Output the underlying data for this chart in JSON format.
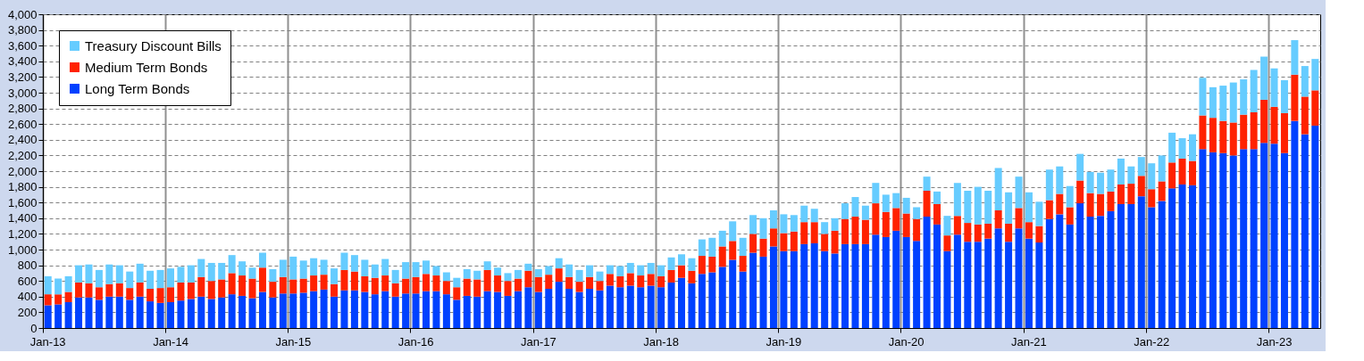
{
  "chart_data": {
    "type": "bar",
    "stacked": true,
    "categories": [
      "Jan-13",
      null,
      null,
      null,
      null,
      null,
      null,
      null,
      null,
      null,
      null,
      null,
      "Jan-14",
      null,
      null,
      null,
      null,
      null,
      null,
      null,
      null,
      null,
      null,
      null,
      "Jan-15",
      null,
      null,
      null,
      null,
      null,
      null,
      null,
      null,
      null,
      null,
      null,
      "Jan-16",
      null,
      null,
      null,
      null,
      null,
      null,
      null,
      null,
      null,
      null,
      null,
      "Jan-17",
      null,
      null,
      null,
      null,
      null,
      null,
      null,
      null,
      null,
      null,
      null,
      "Jan-18",
      null,
      null,
      null,
      null,
      null,
      null,
      null,
      null,
      null,
      null,
      null,
      "Jan-19",
      null,
      null,
      null,
      null,
      null,
      null,
      null,
      null,
      null,
      null,
      null,
      "Jan-20",
      null,
      null,
      null,
      null,
      null,
      null,
      null,
      null,
      null,
      null,
      null,
      "Jan-21",
      null,
      null,
      null,
      null,
      null,
      null,
      null,
      null,
      null,
      null,
      null,
      "Jan-22",
      null,
      null,
      null,
      null,
      null,
      null,
      null,
      null,
      null,
      null,
      null,
      "Jan-23",
      null,
      null,
      null,
      null
    ],
    "series": [
      {
        "name": "Long Term Bonds",
        "color": "#0041ff",
        "values": [
          290,
          300,
          330,
          390,
          390,
          360,
          400,
          400,
          360,
          400,
          340,
          320,
          330,
          350,
          370,
          400,
          370,
          390,
          430,
          410,
          380,
          460,
          390,
          440,
          440,
          450,
          470,
          490,
          400,
          480,
          480,
          460,
          430,
          470,
          400,
          440,
          440,
          470,
          470,
          430,
          360,
          410,
          400,
          470,
          460,
          410,
          470,
          520,
          460,
          500,
          590,
          500,
          460,
          500,
          480,
          540,
          520,
          540,
          520,
          540,
          520,
          580,
          640,
          570,
          690,
          710,
          780,
          870,
          720,
          960,
          910,
          1040,
          980,
          980,
          1070,
          1080,
          980,
          950,
          1070,
          1070,
          1070,
          1190,
          1160,
          1240,
          1160,
          1110,
          1420,
          1320,
          980,
          1190,
          1100,
          1100,
          1140,
          1270,
          1100,
          1270,
          1140,
          1090,
          1390,
          1450,
          1320,
          1590,
          1420,
          1430,
          1490,
          1580,
          1580,
          1680,
          1540,
          1620,
          1780,
          1830,
          1820,
          2280,
          2240,
          2230,
          2200,
          2280,
          2280,
          2360,
          2350,
          2230,
          2640,
          2470,
          2580
        ]
      },
      {
        "name": "Medium Term Bonds",
        "color": "#ff2200",
        "values": [
          140,
          130,
          130,
          190,
          180,
          160,
          160,
          170,
          150,
          180,
          160,
          190,
          190,
          230,
          210,
          250,
          230,
          230,
          270,
          260,
          250,
          310,
          200,
          210,
          180,
          180,
          200,
          190,
          160,
          260,
          240,
          200,
          210,
          200,
          170,
          190,
          210,
          220,
          200,
          170,
          160,
          220,
          220,
          270,
          210,
          190,
          160,
          210,
          190,
          180,
          170,
          150,
          130,
          150,
          120,
          150,
          140,
          160,
          150,
          150,
          140,
          160,
          160,
          160,
          230,
          200,
          260,
          240,
          200,
          240,
          230,
          230,
          230,
          250,
          280,
          270,
          220,
          290,
          320,
          350,
          310,
          400,
          320,
          290,
          300,
          280,
          330,
          260,
          200,
          240,
          240,
          220,
          190,
          230,
          230,
          260,
          210,
          210,
          240,
          260,
          220,
          290,
          300,
          280,
          250,
          250,
          260,
          260,
          230,
          250,
          330,
          330,
          310,
          430,
          440,
          410,
          420,
          440,
          470,
          550,
          470,
          510,
          590,
          480,
          450
        ]
      },
      {
        "name": "Treasury Discount Bills",
        "color": "#66ccff",
        "values": [
          230,
          200,
          200,
          220,
          240,
          220,
          250,
          230,
          210,
          240,
          230,
          230,
          240,
          200,
          220,
          230,
          230,
          210,
          230,
          180,
          140,
          190,
          160,
          220,
          290,
          230,
          220,
          190,
          200,
          220,
          210,
          210,
          170,
          210,
          170,
          210,
          190,
          170,
          120,
          110,
          120,
          120,
          110,
          110,
          100,
          100,
          110,
          90,
          100,
          110,
          130,
          160,
          150,
          150,
          120,
          110,
          130,
          130,
          130,
          140,
          140,
          160,
          140,
          160,
          210,
          240,
          200,
          250,
          230,
          240,
          260,
          230,
          240,
          210,
          210,
          170,
          150,
          160,
          200,
          250,
          180,
          260,
          220,
          190,
          200,
          150,
          180,
          160,
          250,
          420,
          410,
          480,
          420,
          540,
          400,
          400,
          380,
          310,
          390,
          350,
          270,
          340,
          270,
          270,
          280,
          330,
          220,
          240,
          330,
          330,
          380,
          260,
          340,
          480,
          390,
          450,
          510,
          450,
          540,
          550,
          490,
          420,
          440,
          390,
          400
        ]
      }
    ],
    "ylim": [
      0,
      4000
    ],
    "yticks": [
      0,
      200,
      400,
      600,
      800,
      {
        "value": 1000,
        "label": "1,000"
      },
      {
        "value": 1200,
        "label": "1,200"
      },
      {
        "value": 1400,
        "label": "1,400"
      },
      {
        "value": 1600,
        "label": "1,600"
      },
      {
        "value": 1800,
        "label": "1,800"
      },
      {
        "value": 2000,
        "label": "2,000"
      },
      {
        "value": 2200,
        "label": "2,200"
      },
      {
        "value": 2400,
        "label": "2,400"
      },
      {
        "value": 2600,
        "label": "2,600"
      },
      {
        "value": 2800,
        "label": "2,800"
      },
      {
        "value": 3000,
        "label": "3,000"
      },
      {
        "value": 3200,
        "label": "3,200"
      },
      {
        "value": 3400,
        "label": "3,400"
      },
      {
        "value": 3600,
        "label": "3,600"
      },
      {
        "value": 3800,
        "label": "3,800"
      },
      {
        "value": 4000,
        "label": "4,000"
      }
    ],
    "grid": true,
    "legend": "top left"
  }
}
